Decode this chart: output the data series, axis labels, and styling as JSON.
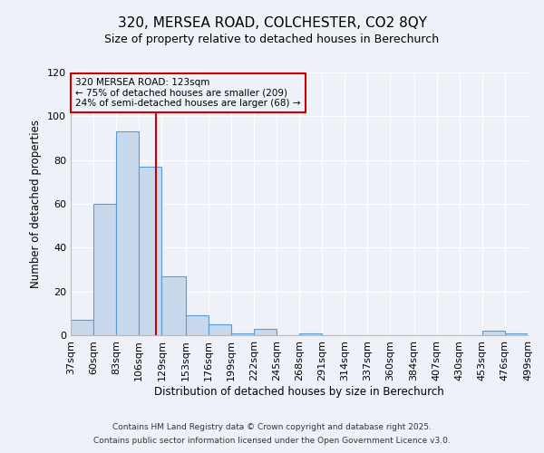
{
  "title_line1": "320, MERSEA ROAD, COLCHESTER, CO2 8QY",
  "title_line2": "Size of property relative to detached houses in Berechurch",
  "xlabel": "Distribution of detached houses by size in Berechurch",
  "ylabel": "Number of detached properties",
  "bins": [
    "37sqm",
    "60sqm",
    "83sqm",
    "106sqm",
    "129sqm",
    "153sqm",
    "176sqm",
    "199sqm",
    "222sqm",
    "245sqm",
    "268sqm",
    "291sqm",
    "314sqm",
    "337sqm",
    "360sqm",
    "384sqm",
    "407sqm",
    "430sqm",
    "453sqm",
    "476sqm",
    "499sqm"
  ],
  "bin_edges": [
    37,
    60,
    83,
    106,
    129,
    153,
    176,
    199,
    222,
    245,
    268,
    291,
    314,
    337,
    360,
    384,
    407,
    430,
    453,
    476,
    499
  ],
  "values": [
    7,
    60,
    93,
    77,
    27,
    9,
    5,
    1,
    3,
    0,
    1,
    0,
    0,
    0,
    0,
    0,
    0,
    0,
    2,
    1
  ],
  "bar_color": "#c8d9ed",
  "bar_edge_color": "#5b9bd5",
  "reference_line_x": 123,
  "reference_line_color": "#cc0000",
  "annotation_text_line1": "320 MERSEA ROAD: 123sqm",
  "annotation_text_line2": "← 75% of detached houses are smaller (209)",
  "annotation_text_line3": "24% of semi-detached houses are larger (68) →",
  "annotation_box_color": "#cc0000",
  "background_color": "#eef2f8",
  "grid_color": "#ffffff",
  "ylim": [
    0,
    120
  ],
  "yticks": [
    0,
    20,
    40,
    60,
    80,
    100,
    120
  ],
  "footer_line1": "Contains HM Land Registry data © Crown copyright and database right 2025.",
  "footer_line2": "Contains public sector information licensed under the Open Government Licence v3.0."
}
